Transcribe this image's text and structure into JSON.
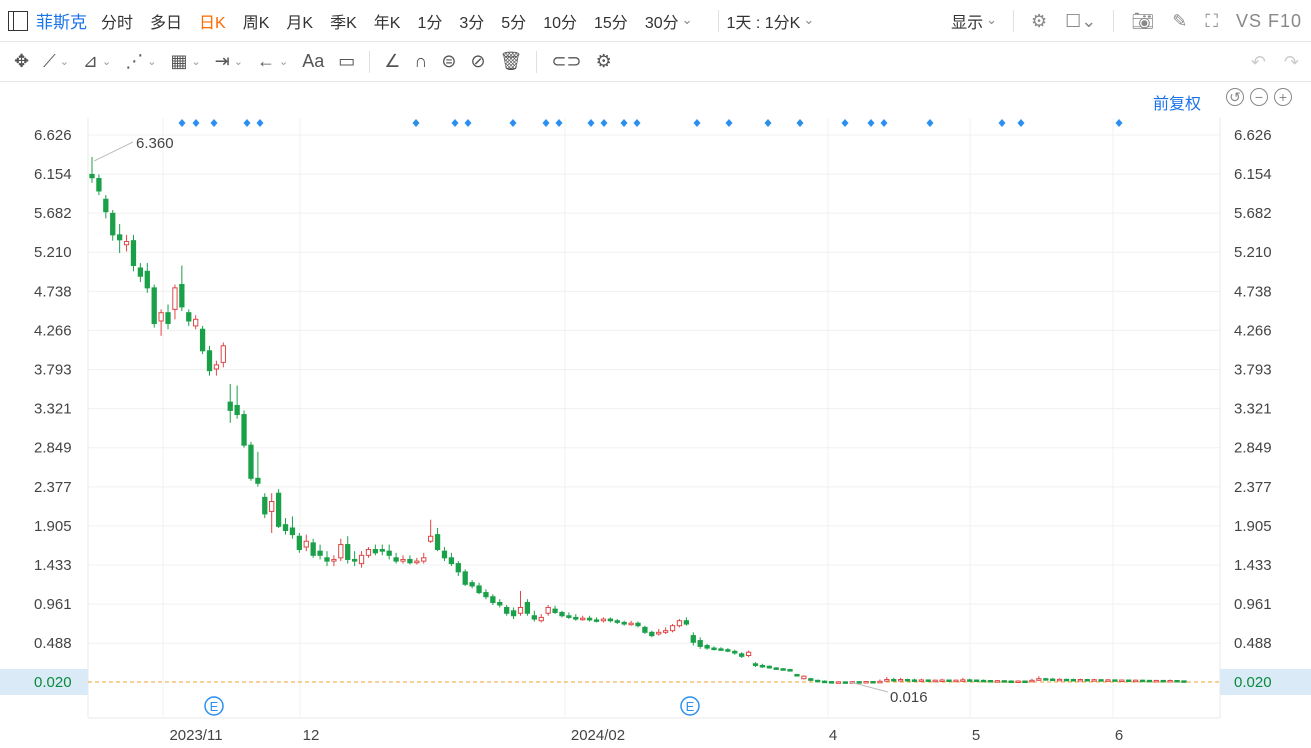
{
  "toolbar": {
    "symbol": "菲斯克",
    "periods": [
      "分时",
      "多日",
      "日K",
      "周K",
      "月K",
      "季K",
      "年K",
      "1分",
      "3分",
      "5分",
      "10分",
      "15分",
      "30分"
    ],
    "active_period": "日K",
    "compare_label": "1天 : 1分K",
    "display_label": "显示",
    "vs_label": "VS",
    "f10_label": "F10"
  },
  "toolbar2_icons": [
    "move-icon",
    "line-icon",
    "polyline-icon",
    "wave-icon",
    "fib-icon",
    "range-icon",
    "arrow-icon",
    "text-icon",
    "comment-icon",
    "pen-icon",
    "magnet-icon",
    "lock-icon",
    "hide-icon",
    "trash-icon",
    "link-icon",
    "settings-icon"
  ],
  "adjust_label": "前复权",
  "chart_data": {
    "type": "candlestick",
    "y_ticks": [
      6.626,
      6.154,
      5.682,
      5.21,
      4.738,
      4.266,
      3.793,
      3.321,
      2.849,
      2.377,
      1.905,
      1.433,
      0.961,
      0.488,
      0.02
    ],
    "y_tick_labels": [
      "6.626",
      "6.154",
      "5.682",
      "5.210",
      "4.738",
      "4.266",
      "3.793",
      "3.321",
      "2.849",
      "2.377",
      "1.905",
      "1.433",
      "0.961",
      "0.488",
      "0.020"
    ],
    "x_tick_labels": [
      "2023/11",
      "12",
      "2024/02",
      "4",
      "5",
      "6"
    ],
    "current_price": "0.020",
    "max_label": "6.360",
    "min_label": "0.016",
    "earnings_marker": "E",
    "up_color": "#e04646",
    "down_color": "#1aa048",
    "price_line_color": "#f0a030",
    "marker_color": "#2b8ff0",
    "candles": [
      [
        6.15,
        6.11,
        6.36,
        6.05
      ],
      [
        6.1,
        5.95,
        6.15,
        5.9
      ],
      [
        5.85,
        5.7,
        5.9,
        5.62
      ],
      [
        5.68,
        5.42,
        5.72,
        5.35
      ],
      [
        5.42,
        5.36,
        5.55,
        5.2
      ],
      [
        5.3,
        5.34,
        5.42,
        5.22
      ],
      [
        5.35,
        5.05,
        5.42,
        4.98
      ],
      [
        5.02,
        4.92,
        5.08,
        4.85
      ],
      [
        4.98,
        4.78,
        5.08,
        4.72
      ],
      [
        4.78,
        4.35,
        4.82,
        4.3
      ],
      [
        4.38,
        4.48,
        4.52,
        4.2
      ],
      [
        4.48,
        4.35,
        4.58,
        4.28
      ],
      [
        4.52,
        4.78,
        4.82,
        4.4
      ],
      [
        4.82,
        4.55,
        5.05,
        4.5
      ],
      [
        4.48,
        4.38,
        4.52,
        4.32
      ],
      [
        4.32,
        4.4,
        4.45,
        4.28
      ],
      [
        4.28,
        4.02,
        4.32,
        3.98
      ],
      [
        4.02,
        3.78,
        4.08,
        3.72
      ],
      [
        3.8,
        3.85,
        3.9,
        3.72
      ],
      [
        3.88,
        4.08,
        4.12,
        3.82
      ],
      [
        3.4,
        3.3,
        3.62,
        3.15
      ],
      [
        3.36,
        3.25,
        3.6,
        3.2
      ],
      [
        3.25,
        2.88,
        3.3,
        2.85
      ],
      [
        2.88,
        2.48,
        2.92,
        2.45
      ],
      [
        2.48,
        2.42,
        2.8,
        2.38
      ],
      [
        2.25,
        2.05,
        2.3,
        2.0
      ],
      [
        2.08,
        2.2,
        2.3,
        1.82
      ],
      [
        2.3,
        1.9,
        2.35,
        1.88
      ],
      [
        1.92,
        1.85,
        2.0,
        1.8
      ],
      [
        1.88,
        1.8,
        2.02,
        1.75
      ],
      [
        1.78,
        1.62,
        1.82,
        1.58
      ],
      [
        1.65,
        1.72,
        1.8,
        1.6
      ],
      [
        1.7,
        1.55,
        1.75,
        1.52
      ],
      [
        1.6,
        1.55,
        1.68,
        1.5
      ],
      [
        1.52,
        1.48,
        1.6,
        1.42
      ],
      [
        1.48,
        1.5,
        1.55,
        1.42
      ],
      [
        1.52,
        1.68,
        1.75,
        1.48
      ],
      [
        1.68,
        1.5,
        1.78,
        1.45
      ],
      [
        1.5,
        1.48,
        1.6,
        1.42
      ],
      [
        1.45,
        1.55,
        1.6,
        1.4
      ],
      [
        1.55,
        1.62,
        1.65,
        1.52
      ],
      [
        1.62,
        1.58,
        1.68,
        1.55
      ],
      [
        1.62,
        1.6,
        1.68,
        1.55
      ],
      [
        1.6,
        1.55,
        1.68,
        1.5
      ],
      [
        1.52,
        1.48,
        1.58,
        1.45
      ],
      [
        1.48,
        1.5,
        1.55,
        1.45
      ],
      [
        1.5,
        1.46,
        1.55,
        1.44
      ],
      [
        1.46,
        1.48,
        1.52,
        1.44
      ],
      [
        1.48,
        1.52,
        1.58,
        1.45
      ],
      [
        1.72,
        1.78,
        1.98,
        1.7
      ],
      [
        1.8,
        1.62,
        1.88,
        1.6
      ],
      [
        1.6,
        1.52,
        1.65,
        1.48
      ],
      [
        1.52,
        1.45,
        1.58,
        1.42
      ],
      [
        1.45,
        1.35,
        1.48,
        1.3
      ],
      [
        1.35,
        1.2,
        1.38,
        1.18
      ],
      [
        1.22,
        1.18,
        1.25,
        1.15
      ],
      [
        1.18,
        1.1,
        1.22,
        1.08
      ],
      [
        1.1,
        1.05,
        1.14,
        1.02
      ],
      [
        1.05,
        0.98,
        1.08,
        0.95
      ],
      [
        0.98,
        0.95,
        1.02,
        0.92
      ],
      [
        0.92,
        0.85,
        0.95,
        0.82
      ],
      [
        0.88,
        0.82,
        0.92,
        0.78
      ],
      [
        0.85,
        0.92,
        1.12,
        0.82
      ],
      [
        0.98,
        0.85,
        1.02,
        0.82
      ],
      [
        0.82,
        0.78,
        0.88,
        0.75
      ],
      [
        0.76,
        0.8,
        0.84,
        0.74
      ],
      [
        0.85,
        0.92,
        0.95,
        0.82
      ],
      [
        0.9,
        0.86,
        0.94,
        0.84
      ],
      [
        0.86,
        0.82,
        0.88,
        0.8
      ],
      [
        0.82,
        0.8,
        0.86,
        0.78
      ],
      [
        0.8,
        0.78,
        0.84,
        0.76
      ],
      [
        0.78,
        0.79,
        0.82,
        0.76
      ],
      [
        0.79,
        0.77,
        0.82,
        0.75
      ],
      [
        0.77,
        0.76,
        0.8,
        0.74
      ],
      [
        0.76,
        0.78,
        0.8,
        0.74
      ],
      [
        0.78,
        0.76,
        0.8,
        0.74
      ],
      [
        0.76,
        0.74,
        0.78,
        0.72
      ],
      [
        0.74,
        0.72,
        0.76,
        0.7
      ],
      [
        0.72,
        0.73,
        0.76,
        0.7
      ],
      [
        0.73,
        0.7,
        0.75,
        0.68
      ],
      [
        0.68,
        0.62,
        0.7,
        0.6
      ],
      [
        0.62,
        0.58,
        0.64,
        0.56
      ],
      [
        0.6,
        0.62,
        0.66,
        0.58
      ],
      [
        0.62,
        0.64,
        0.68,
        0.6
      ],
      [
        0.64,
        0.7,
        0.72,
        0.62
      ],
      [
        0.7,
        0.76,
        0.78,
        0.68
      ],
      [
        0.76,
        0.72,
        0.8,
        0.7
      ],
      [
        0.58,
        0.5,
        0.62,
        0.46
      ],
      [
        0.52,
        0.45,
        0.56,
        0.42
      ],
      [
        0.46,
        0.43,
        0.48,
        0.41
      ],
      [
        0.43,
        0.42,
        0.45,
        0.4
      ],
      [
        0.42,
        0.41,
        0.44,
        0.4
      ],
      [
        0.41,
        0.4,
        0.43,
        0.38
      ],
      [
        0.39,
        0.37,
        0.41,
        0.35
      ],
      [
        0.36,
        0.33,
        0.38,
        0.31
      ],
      [
        0.34,
        0.38,
        0.4,
        0.32
      ],
      [
        0.24,
        0.22,
        0.26,
        0.2
      ],
      [
        0.22,
        0.21,
        0.24,
        0.19
      ],
      [
        0.21,
        0.19,
        0.22,
        0.18
      ],
      [
        0.19,
        0.18,
        0.2,
        0.17
      ],
      [
        0.18,
        0.17,
        0.19,
        0.16
      ],
      [
        0.17,
        0.16,
        0.18,
        0.15
      ],
      [
        0.11,
        0.1,
        0.12,
        0.09
      ],
      [
        0.06,
        0.09,
        0.1,
        0.05
      ],
      [
        0.06,
        0.04,
        0.07,
        0.03
      ],
      [
        0.04,
        0.03,
        0.05,
        0.025
      ],
      [
        0.03,
        0.025,
        0.04,
        0.02
      ],
      [
        0.025,
        0.02,
        0.03,
        0.018
      ],
      [
        0.02,
        0.022,
        0.03,
        0.018
      ],
      [
        0.022,
        0.02,
        0.028,
        0.016
      ],
      [
        0.02,
        0.024,
        0.03,
        0.018
      ],
      [
        0.024,
        0.022,
        0.03,
        0.02
      ],
      [
        0.022,
        0.026,
        0.032,
        0.02
      ],
      [
        0.026,
        0.02,
        0.03,
        0.018
      ],
      [
        0.02,
        0.028,
        0.05,
        0.018
      ],
      [
        0.03,
        0.05,
        0.08,
        0.028
      ],
      [
        0.05,
        0.04,
        0.07,
        0.035
      ],
      [
        0.04,
        0.05,
        0.07,
        0.035
      ],
      [
        0.05,
        0.045,
        0.06,
        0.04
      ],
      [
        0.045,
        0.04,
        0.06,
        0.035
      ],
      [
        0.04,
        0.045,
        0.06,
        0.035
      ],
      [
        0.045,
        0.04,
        0.05,
        0.035
      ],
      [
        0.04,
        0.042,
        0.05,
        0.035
      ],
      [
        0.042,
        0.044,
        0.06,
        0.038
      ],
      [
        0.044,
        0.04,
        0.05,
        0.035
      ],
      [
        0.04,
        0.042,
        0.05,
        0.036
      ],
      [
        0.042,
        0.046,
        0.07,
        0.04
      ],
      [
        0.046,
        0.044,
        0.06,
        0.04
      ],
      [
        0.044,
        0.04,
        0.05,
        0.035
      ],
      [
        0.04,
        0.038,
        0.05,
        0.032
      ],
      [
        0.038,
        0.034,
        0.04,
        0.03
      ],
      [
        0.034,
        0.036,
        0.045,
        0.03
      ],
      [
        0.036,
        0.032,
        0.04,
        0.028
      ],
      [
        0.032,
        0.03,
        0.04,
        0.026
      ],
      [
        0.03,
        0.032,
        0.04,
        0.028
      ],
      [
        0.032,
        0.03,
        0.036,
        0.026
      ],
      [
        0.03,
        0.04,
        0.06,
        0.028
      ],
      [
        0.04,
        0.06,
        0.09,
        0.038
      ],
      [
        0.06,
        0.055,
        0.07,
        0.05
      ],
      [
        0.055,
        0.05,
        0.07,
        0.045
      ],
      [
        0.05,
        0.052,
        0.065,
        0.045
      ],
      [
        0.052,
        0.05,
        0.06,
        0.045
      ],
      [
        0.05,
        0.048,
        0.06,
        0.044
      ],
      [
        0.048,
        0.05,
        0.06,
        0.044
      ],
      [
        0.05,
        0.046,
        0.058,
        0.042
      ],
      [
        0.046,
        0.048,
        0.058,
        0.042
      ],
      [
        0.048,
        0.045,
        0.055,
        0.04
      ],
      [
        0.045,
        0.046,
        0.055,
        0.04
      ],
      [
        0.046,
        0.042,
        0.05,
        0.038
      ],
      [
        0.042,
        0.044,
        0.05,
        0.038
      ],
      [
        0.044,
        0.04,
        0.05,
        0.036
      ],
      [
        0.04,
        0.042,
        0.05,
        0.036
      ],
      [
        0.042,
        0.04,
        0.05,
        0.036
      ],
      [
        0.04,
        0.038,
        0.045,
        0.034
      ],
      [
        0.038,
        0.039,
        0.045,
        0.034
      ],
      [
        0.039,
        0.036,
        0.045,
        0.032
      ],
      [
        0.036,
        0.038,
        0.05,
        0.032
      ],
      [
        0.038,
        0.034,
        0.04,
        0.03
      ],
      [
        0.034,
        0.02,
        0.036,
        0.018
      ]
    ]
  }
}
